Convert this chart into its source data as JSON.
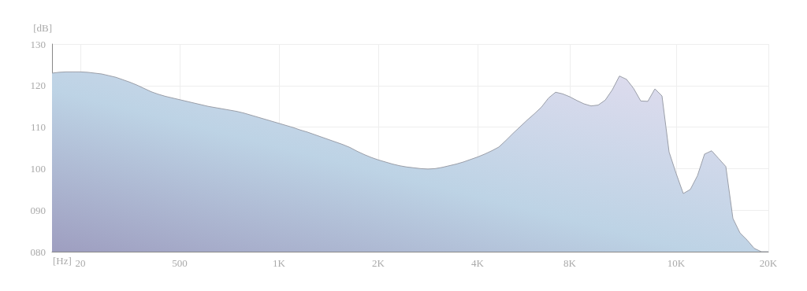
{
  "chart_data": {
    "type": "area",
    "xlabel": "[Hz]",
    "ylabel": "[dB]",
    "categories": [
      null,
      null,
      null,
      null,
      "20",
      null,
      null,
      null,
      null,
      null,
      null,
      null,
      null,
      null,
      null,
      null,
      null,
      null,
      "500",
      null,
      null,
      null,
      null,
      null,
      null,
      null,
      null,
      null,
      null,
      null,
      null,
      null,
      "1K",
      null,
      null,
      null,
      null,
      null,
      null,
      null,
      null,
      null,
      null,
      null,
      null,
      null,
      "2K",
      null,
      null,
      null,
      null,
      null,
      null,
      null,
      null,
      null,
      null,
      null,
      null,
      null,
      "4K",
      null,
      null,
      null,
      null,
      null,
      null,
      null,
      null,
      null,
      null,
      null,
      null,
      "8K",
      null,
      null,
      null,
      null,
      null,
      null,
      null,
      null,
      null,
      null,
      null,
      null,
      null,
      null,
      "10K",
      null,
      null,
      null,
      null,
      null,
      null,
      null,
      null,
      null,
      null,
      null,
      null,
      "20K"
    ],
    "series": [
      {
        "color": "#bdd3e5",
        "values": [
          123.0,
          123.2,
          123.3,
          123.3,
          123.3,
          123.2,
          123.0,
          122.8,
          122.4,
          122.0,
          121.4,
          120.8,
          120.1,
          119.3,
          118.5,
          117.9,
          117.4,
          117.0,
          116.6,
          116.2,
          115.8,
          115.4,
          115.0,
          114.7,
          114.4,
          114.1,
          113.8,
          113.4,
          112.9,
          112.4,
          111.9,
          111.4,
          110.9,
          110.4,
          109.9,
          109.3,
          108.8,
          108.2,
          107.6,
          107.0,
          106.4,
          105.8,
          105.1,
          104.2,
          103.4,
          102.7,
          102.1,
          101.6,
          101.1,
          100.7,
          100.4,
          100.2,
          100.0,
          99.9,
          100.0,
          100.3,
          100.7,
          101.1,
          101.6,
          102.2,
          102.8,
          103.5,
          104.3,
          105.2,
          106.8,
          108.5,
          110.1,
          111.7,
          113.2,
          114.8,
          117.0,
          118.4,
          118.0,
          117.3,
          116.4,
          115.6,
          115.1,
          115.3,
          116.5,
          119.0,
          122.3,
          121.5,
          119.3,
          116.3,
          116.2,
          119.2,
          117.5,
          104.0,
          98.8,
          94.0,
          95.0,
          98.3,
          103.5,
          104.3,
          102.4,
          100.5,
          88.0,
          84.5,
          82.8,
          80.8,
          80,
          80
        ]
      }
    ],
    "ylim": [
      80,
      130
    ],
    "yticks": [
      {
        "value": 80,
        "label": "080"
      },
      {
        "value": 90,
        "label": "090"
      },
      100,
      110,
      120,
      130
    ],
    "grid": true
  }
}
